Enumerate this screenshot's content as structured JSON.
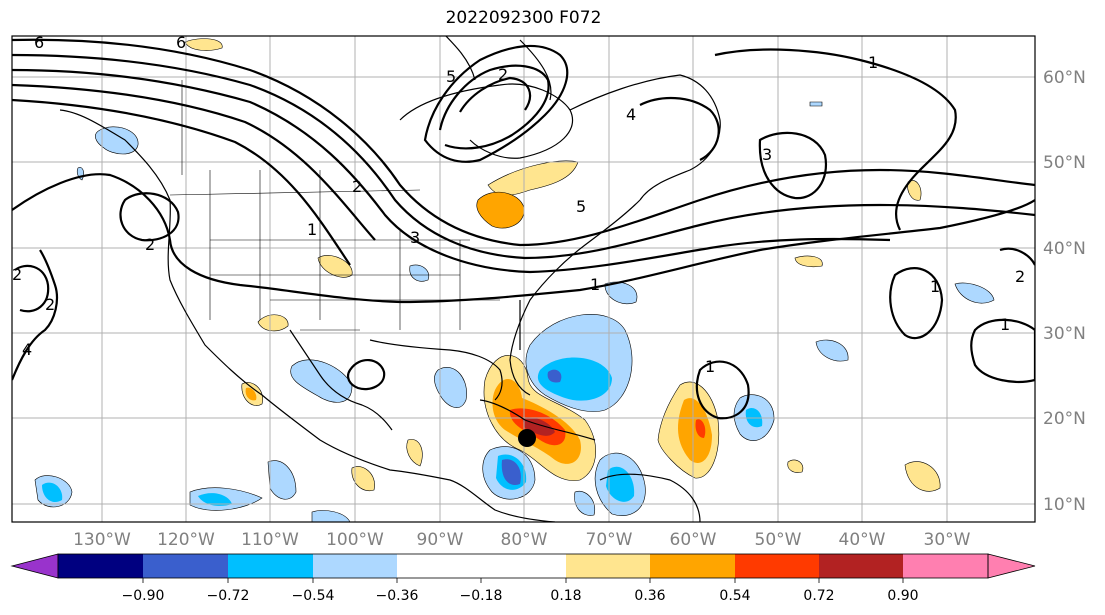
{
  "title": "2022092300 F072",
  "map": {
    "lon_labels": [
      "130°W",
      "120°W",
      "110°W",
      "100°W",
      "90°W",
      "80°W",
      "70°W",
      "60°W",
      "50°W",
      "40°W",
      "30°W"
    ],
    "lat_labels": [
      "60°N",
      "50°N",
      "40°N",
      "30°N",
      "20°N",
      "10°N"
    ],
    "contour_labels": [
      "6",
      "6",
      "5",
      "2",
      "2",
      "1",
      "1",
      "1",
      "1",
      "1",
      "1",
      "2",
      "2",
      "2",
      "2",
      "4",
      "3",
      "5",
      "3",
      "4"
    ],
    "storm_marker": "black-dot"
  },
  "colorbar": {
    "ticks": [
      "−0.90",
      "−0.72",
      "−0.54",
      "−0.36",
      "−0.18",
      "0.18",
      "0.36",
      "0.54",
      "0.72",
      "0.90"
    ],
    "colors": [
      "#9933cc",
      "#000080",
      "#3a5fcd",
      "#00bfff",
      "#add8ff",
      "#ffffff",
      "#ffe58f",
      "#ffa500",
      "#ff3a00",
      "#b22222",
      "#ff7fb0"
    ]
  }
}
